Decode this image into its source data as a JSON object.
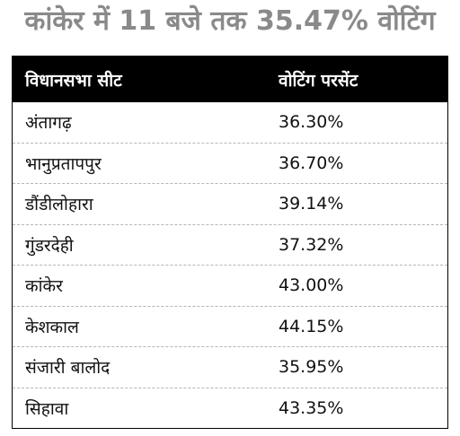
{
  "title": "कांकेर में 11 बजे तक 35.47% वोटिंग",
  "table": {
    "headers": [
      "विधानसभा सीट",
      "वोटिंग परसेंट"
    ],
    "rows": [
      {
        "seat": "अंतागढ़",
        "percent": "36.30%"
      },
      {
        "seat": "भानुप्रतापपुर",
        "percent": "36.70%"
      },
      {
        "seat": "डौंडीलोहारा",
        "percent": "39.14%"
      },
      {
        "seat": "गुंडरदेही",
        "percent": "37.32%"
      },
      {
        "seat": "कांकेर",
        "percent": "43.00%"
      },
      {
        "seat": "केशकाल",
        "percent": "44.15%"
      },
      {
        "seat": "संजारी बालोद",
        "percent": "35.95%"
      },
      {
        "seat": "सिहावा",
        "percent": "43.35%"
      }
    ]
  }
}
